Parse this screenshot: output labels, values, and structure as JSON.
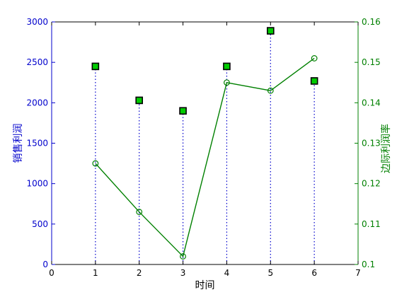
{
  "chart_data": {
    "type": "line",
    "xlabel": "时间",
    "x_ticks": [
      "0",
      "1",
      "2",
      "3",
      "4",
      "5",
      "6",
      "7"
    ],
    "xlim": [
      0,
      7
    ],
    "grid": false,
    "y_left": {
      "label": "销售利润",
      "ylim": [
        0,
        3000
      ],
      "ticks": [
        "0",
        "500",
        "1000",
        "1500",
        "2000",
        "2500",
        "3000"
      ],
      "color": "#0000cc"
    },
    "y_right": {
      "label": "边际利润率",
      "ylim": [
        0.1,
        0.16
      ],
      "ticks": [
        "0.1",
        "0.11",
        "0.12",
        "0.13",
        "0.14",
        "0.15",
        "0.16"
      ],
      "color": "#008000"
    },
    "series": [
      {
        "axis": "left",
        "style": "stem",
        "stem_color": "#0000cc",
        "marker": "square",
        "marker_fill": "#00cc00",
        "marker_edge": "#000000",
        "x": [
          1,
          2,
          3,
          4,
          5,
          6
        ],
        "values": [
          2450,
          2030,
          1900,
          2450,
          2890,
          2270
        ]
      },
      {
        "axis": "right",
        "style": "line",
        "color": "#008000",
        "marker": "circle",
        "x": [
          1,
          2,
          3,
          4,
          5,
          6
        ],
        "values": [
          0.125,
          0.113,
          0.102,
          0.145,
          0.143,
          0.151
        ]
      }
    ]
  }
}
